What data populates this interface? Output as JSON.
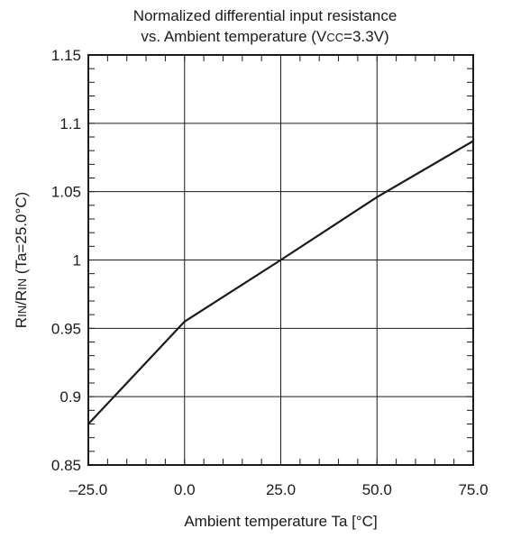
{
  "chart_data": {
    "type": "line",
    "title": {
      "line1": "Normalized differential input resistance",
      "line2_prefix": "vs. Ambient temperature (V",
      "line2_sub": "CC",
      "line2_suffix": "=3.3V)"
    },
    "xlabel": "Ambient temperature Ta [°C]",
    "ylabel": {
      "r1": "R",
      "sub1": "IN",
      "mid": "/R",
      "sub2": "IN",
      "rest": " (Ta=25.0°C)"
    },
    "xlim": [
      -25,
      75
    ],
    "ylim": [
      0.85,
      1.15
    ],
    "x_ticks": [
      -25,
      0,
      25,
      50,
      75
    ],
    "x_tick_labels": [
      "–25.0",
      "0.0",
      "25.0",
      "50.0",
      "75.0"
    ],
    "y_ticks": [
      0.85,
      0.9,
      0.95,
      1,
      1.05,
      1.1,
      1.15
    ],
    "y_tick_labels": [
      "0.85",
      "0.9",
      "0.95",
      "1",
      "1.05",
      "1.1",
      "1.15"
    ],
    "grid": true,
    "series": [
      {
        "x": [
          -25,
          0,
          25,
          50,
          75
        ],
        "y": [
          0.88,
          0.955,
          1.0,
          1.046,
          1.087
        ]
      }
    ],
    "line_color": "#1a1a1a"
  }
}
